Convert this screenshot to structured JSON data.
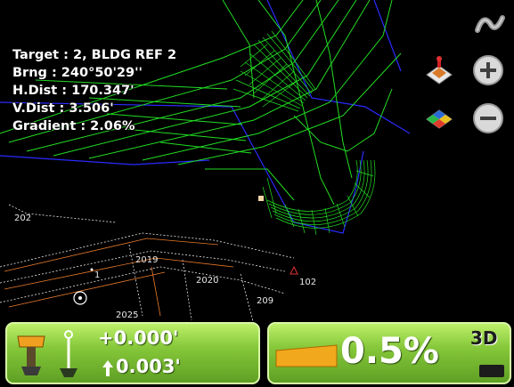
{
  "hud": {
    "target": "Target : 2, BLDG REF 2",
    "bearing": "Brng : 240°50'29''",
    "h_dist": "H.Dist : 170.347'",
    "v_dist": "V.Dist : 3.506'",
    "gradient": "Gradient : 2.06%"
  },
  "map_labels": {
    "p202": "202",
    "p1": "1",
    "p2019": "2019",
    "p2020": "2020",
    "p102": "102",
    "p209": "209",
    "p2025": "2025"
  },
  "toolbar": {
    "nav_icon": "squiggle-nav-icon",
    "layer_icon": "surface-layer-icon",
    "color_map_icon": "color-map-icon",
    "zoom_in_icon": "plus-icon",
    "zoom_out_icon": "minus-icon"
  },
  "bottom_left": {
    "cut_fill": "+0.000'",
    "vertical": "0.003'"
  },
  "bottom_right": {
    "slope": "0.5%",
    "view_mode": "3D"
  },
  "colors": {
    "linework": "#22dd22",
    "boundary": "#2a2aff",
    "panel": "#86c83a",
    "slope_bar": "#f2a81c"
  }
}
